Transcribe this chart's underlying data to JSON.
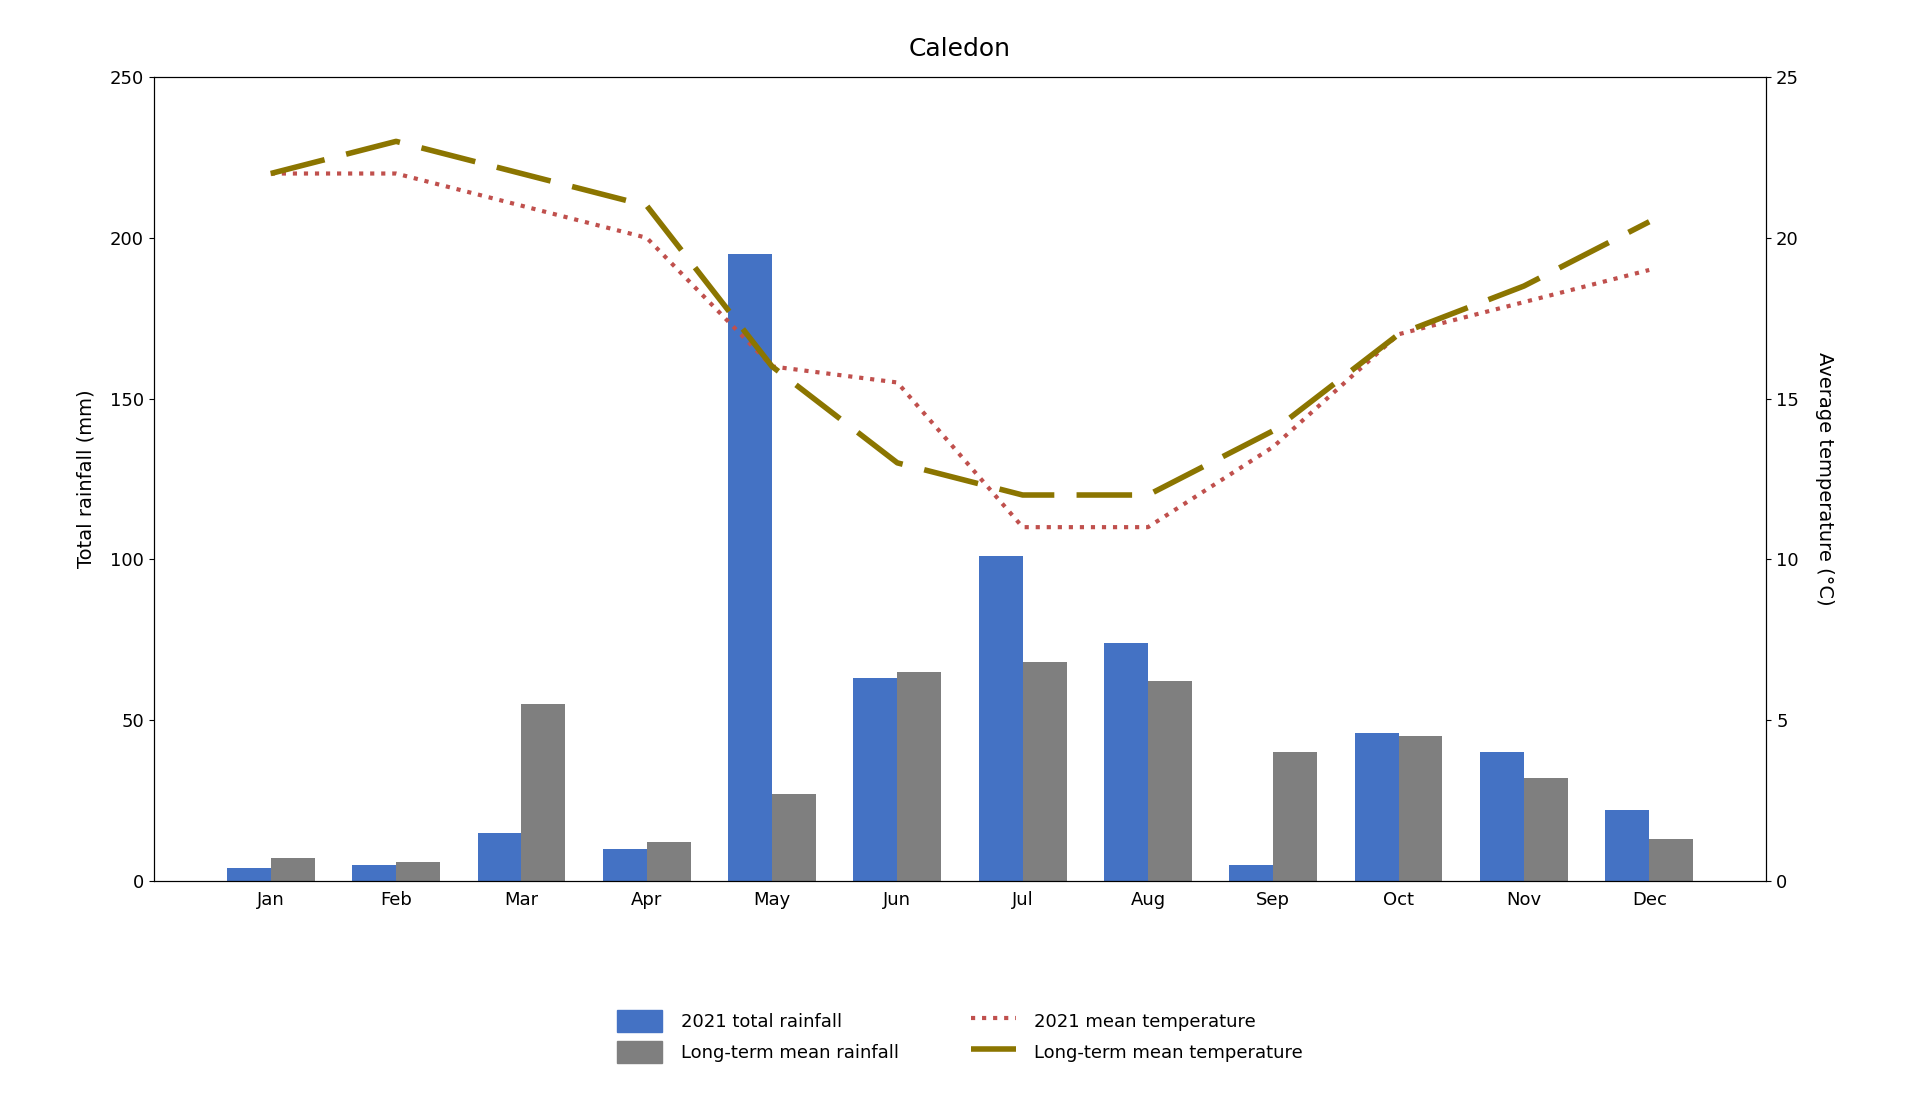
{
  "title": "Caledon",
  "months": [
    "Jan",
    "Feb",
    "Mar",
    "Apr",
    "May",
    "Jun",
    "Jul",
    "Aug",
    "Sep",
    "Oct",
    "Nov",
    "Dec"
  ],
  "rainfall_2021": [
    4,
    5,
    15,
    10,
    195,
    63,
    101,
    74,
    5,
    46,
    40,
    22
  ],
  "rainfall_ltm": [
    7,
    6,
    55,
    12,
    27,
    65,
    68,
    62,
    40,
    45,
    32,
    13
  ],
  "temp_2021": [
    22,
    22,
    21,
    20,
    16,
    15.5,
    11,
    11,
    13.5,
    17,
    18,
    19
  ],
  "temp_ltm": [
    22,
    23,
    22,
    21,
    16,
    13,
    12,
    12,
    14,
    17,
    18.5,
    20.5
  ],
  "bar_color_2021": "#4472C4",
  "bar_color_ltm": "#7F7F7F",
  "temp_2021_color": "#C0504D",
  "temp_ltm_color": "#8B7500",
  "ylabel_left": "Total rainfall (mm)",
  "ylabel_right": "Average temperature (°C)",
  "ylim_left": [
    0,
    250
  ],
  "ylim_right": [
    0,
    25
  ],
  "yticks_left": [
    0,
    50,
    100,
    150,
    200,
    250
  ],
  "yticks_right": [
    0,
    5,
    10,
    15,
    20,
    25
  ],
  "legend_labels": [
    "2021 total rainfall",
    "Long-term mean rainfall",
    "2021 mean temperature",
    "Long-term mean temperature"
  ],
  "figsize": [
    19.2,
    11.01
  ],
  "dpi": 100
}
